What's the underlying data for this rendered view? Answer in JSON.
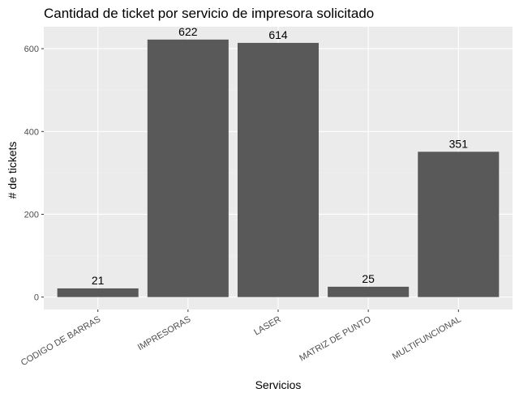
{
  "chart_data": {
    "type": "bar",
    "title": "Cantidad de ticket por servicio de impresora solicitado",
    "xlabel": "Servicios",
    "ylabel": "# de tickets",
    "categories": [
      "CODIGO DE BARRAS",
      "IMPRESORAS",
      "LASER",
      "MATRIZ DE PUNTO",
      "MULTIFUNCIONAL"
    ],
    "values": [
      21,
      622,
      614,
      25,
      351
    ],
    "data_labels": [
      "21",
      "622",
      "614",
      "25",
      "351"
    ],
    "yticks": [
      0,
      200,
      400,
      600
    ],
    "ytick_labels": [
      "0",
      "200",
      "400",
      "600"
    ],
    "ylim": [
      -30,
      653
    ],
    "grid": true,
    "legend": "none",
    "colors": {
      "bar": "#595959",
      "panel": "#ebebeb",
      "grid_major": "#ffffff",
      "grid_minor": "#f2f2f2",
      "tick": "#333333"
    }
  }
}
